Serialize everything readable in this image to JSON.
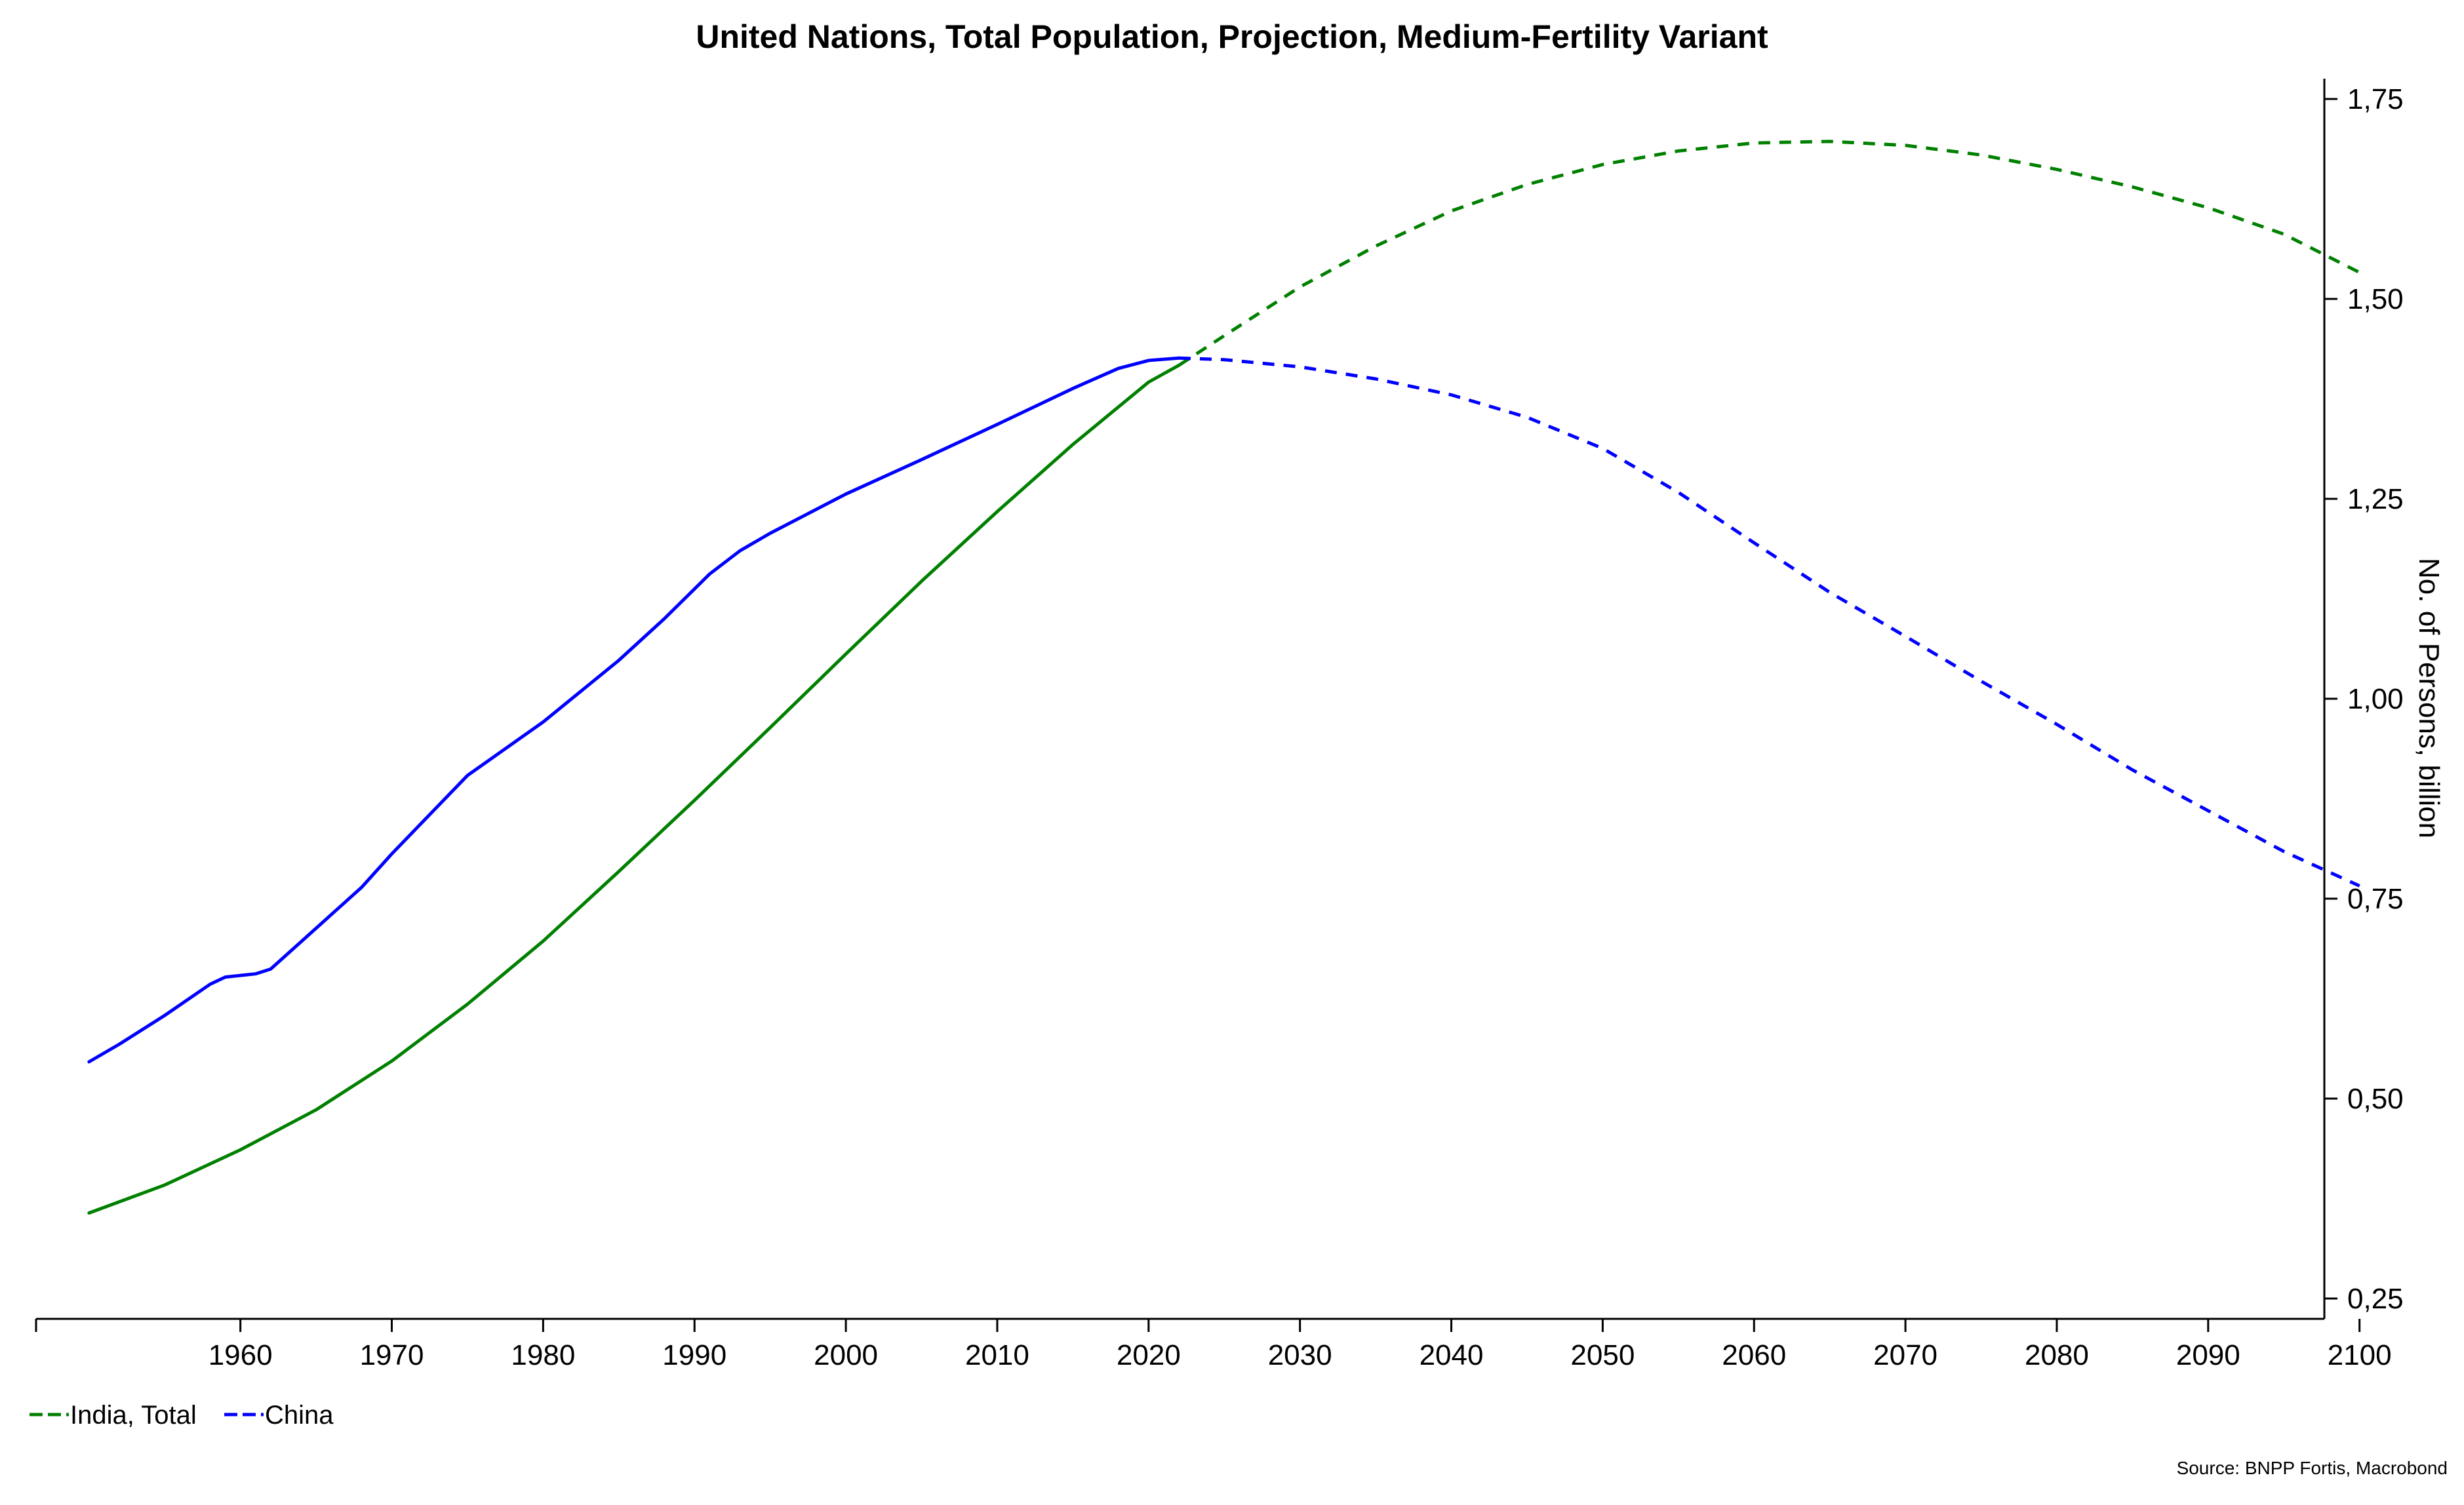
{
  "chart_data": {
    "type": "line",
    "title": "United Nations, Total Population, Projection, Medium-Fertility Variant",
    "xlabel": "",
    "ylabel": "No. of Persons, billion",
    "xlim": [
      1950,
      2100
    ],
    "ylim": [
      0.25,
      1.75
    ],
    "x_ticks": [
      "1960",
      "1970",
      "1980",
      "1990",
      "2000",
      "2010",
      "2020",
      "2030",
      "2040",
      "2050",
      "2060",
      "2070",
      "2080",
      "2090",
      "2100"
    ],
    "y_ticks": [
      "0,25",
      "0,50",
      "0,75",
      "1,00",
      "1,25",
      "1,50",
      "1,75"
    ],
    "y_axis_side": "right",
    "grid": false,
    "legend_position": "bottom-left",
    "projection_start": 2022,
    "series": [
      {
        "name": "India, Total",
        "color": "#008000",
        "points": [
          [
            1950,
            0.357
          ],
          [
            1955,
            0.392
          ],
          [
            1960,
            0.436
          ],
          [
            1965,
            0.486
          ],
          [
            1970,
            0.547
          ],
          [
            1975,
            0.618
          ],
          [
            1980,
            0.697
          ],
          [
            1985,
            0.784
          ],
          [
            1990,
            0.873
          ],
          [
            1995,
            0.964
          ],
          [
            2000,
            1.056
          ],
          [
            2005,
            1.147
          ],
          [
            2010,
            1.234
          ],
          [
            2015,
            1.318
          ],
          [
            2020,
            1.396
          ],
          [
            2022,
            1.417
          ],
          [
            2025,
            1.454
          ],
          [
            2030,
            1.515
          ],
          [
            2035,
            1.566
          ],
          [
            2040,
            1.61
          ],
          [
            2045,
            1.643
          ],
          [
            2050,
            1.668
          ],
          [
            2055,
            1.685
          ],
          [
            2060,
            1.695
          ],
          [
            2065,
            1.697
          ],
          [
            2070,
            1.692
          ],
          [
            2075,
            1.68
          ],
          [
            2080,
            1.662
          ],
          [
            2085,
            1.64
          ],
          [
            2090,
            1.614
          ],
          [
            2095,
            1.581
          ],
          [
            2100,
            1.533
          ]
        ]
      },
      {
        "name": "China",
        "color": "#0000ff",
        "points": [
          [
            1950,
            0.546
          ],
          [
            1952,
            0.568
          ],
          [
            1955,
            0.604
          ],
          [
            1958,
            0.643
          ],
          [
            1959,
            0.652
          ],
          [
            1961,
            0.656
          ],
          [
            1962,
            0.662
          ],
          [
            1965,
            0.713
          ],
          [
            1968,
            0.764
          ],
          [
            1970,
            0.806
          ],
          [
            1975,
            0.904
          ],
          [
            1980,
            0.971
          ],
          [
            1985,
            1.048
          ],
          [
            1988,
            1.1
          ],
          [
            1991,
            1.156
          ],
          [
            1993,
            1.185
          ],
          [
            1995,
            1.207
          ],
          [
            2000,
            1.256
          ],
          [
            2005,
            1.299
          ],
          [
            2010,
            1.343
          ],
          [
            2015,
            1.388
          ],
          [
            2018,
            1.413
          ],
          [
            2020,
            1.423
          ],
          [
            2022,
            1.426
          ],
          [
            2025,
            1.424
          ],
          [
            2030,
            1.415
          ],
          [
            2035,
            1.4
          ],
          [
            2040,
            1.38
          ],
          [
            2045,
            1.352
          ],
          [
            2050,
            1.313
          ],
          [
            2055,
            1.258
          ],
          [
            2060,
            1.195
          ],
          [
            2065,
            1.133
          ],
          [
            2070,
            1.078
          ],
          [
            2075,
            1.022
          ],
          [
            2080,
            0.968
          ],
          [
            2085,
            0.911
          ],
          [
            2090,
            0.86
          ],
          [
            2095,
            0.809
          ],
          [
            2100,
            0.766
          ]
        ]
      }
    ]
  },
  "source": "Source: BNPP Fortis, Macrobond"
}
